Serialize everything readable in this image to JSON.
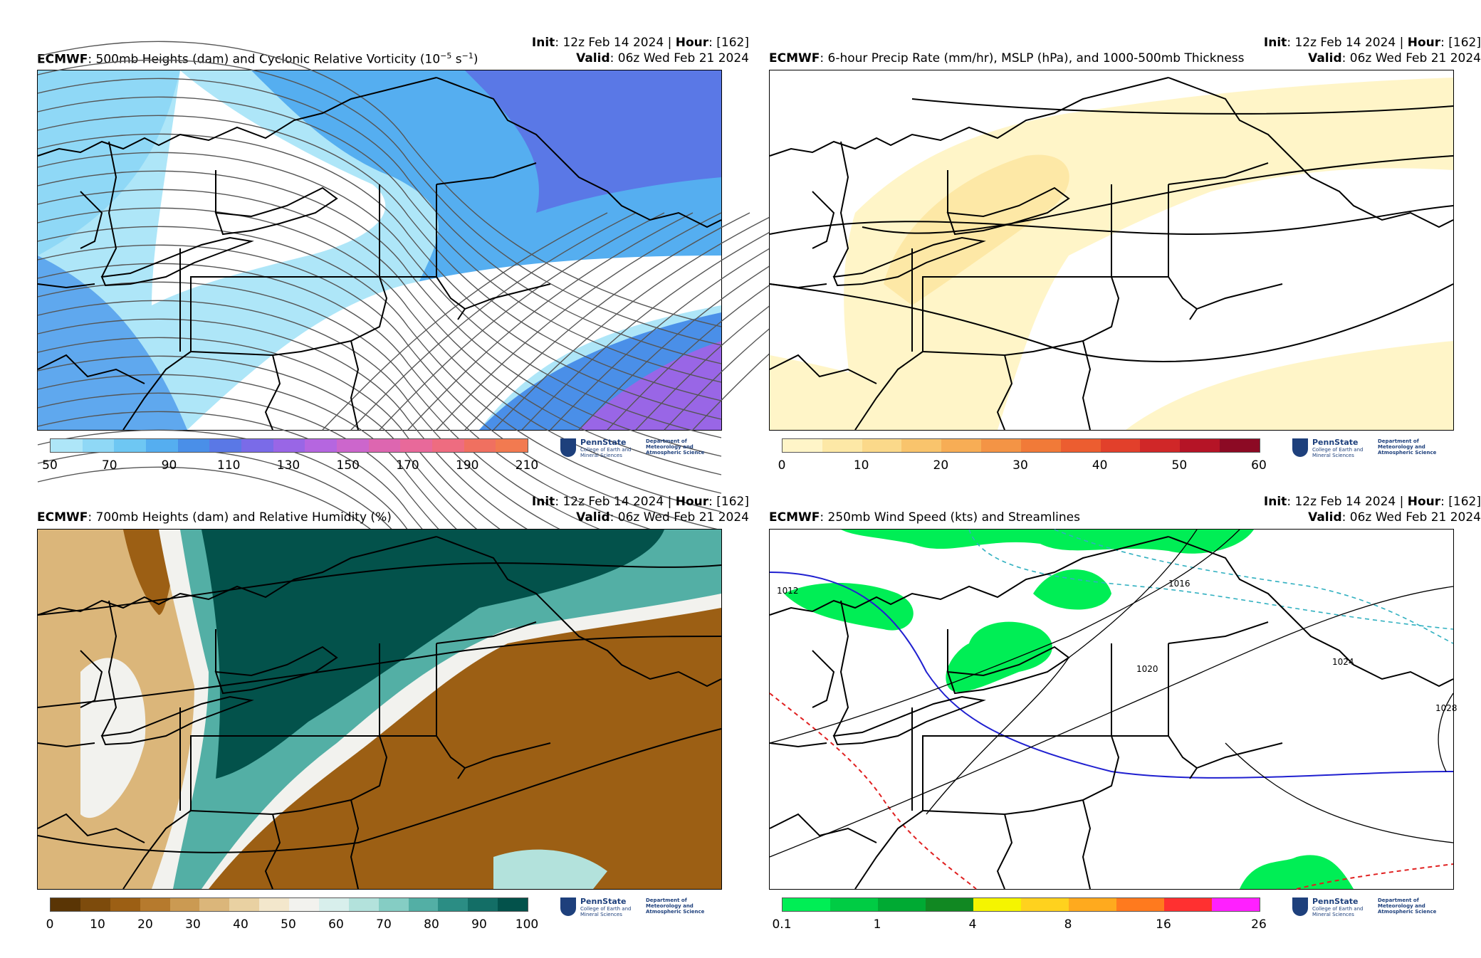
{
  "panels": [
    {
      "init_label": "Init",
      "init": ": 12z Feb 14 2024 | ",
      "hour_label": "Hour",
      "hour": ": [162]",
      "model": "ECMWF",
      "title": ": 500mb Heights (dam) and Cyclonic Relative Vorticity (10",
      "title_sup": "−5",
      "title_end": " s",
      "title_sup2": "−1",
      "title_close": ")",
      "valid_label": "Valid",
      "valid": ": 06z Wed Feb 21 2024",
      "colorbar": {
        "colors": [
          "#aee6f8",
          "#8fd8f6",
          "#6ec7f3",
          "#55aef0",
          "#4a8fe8",
          "#5a78e6",
          "#7a6be8",
          "#9966e6",
          "#b566e0",
          "#cc66cc",
          "#dd66b0",
          "#e8699a",
          "#ee6c80",
          "#f07060",
          "#f27a50"
        ],
        "ticks": [
          "50",
          "70",
          "90",
          "110",
          "130",
          "150",
          "170",
          "190",
          "210"
        ]
      }
    },
    {
      "init_label": "Init",
      "init": ": 12z Feb 14 2024 | ",
      "hour_label": "Hour",
      "hour": ": [162]",
      "model": "ECMWF",
      "title": ": 6-hour Precip Rate (mm/hr), MSLP (hPa), and 1000-500mb Thickness",
      "valid_label": "Valid",
      "valid": ": 06z Wed Feb 21 2024",
      "colorbar": {
        "colors": [
          "#fff5c8",
          "#fde8a6",
          "#fbd98a",
          "#f9c46c",
          "#f7ad55",
          "#f49445",
          "#f17a38",
          "#ec5d30",
          "#e2402b",
          "#d02728",
          "#b51426",
          "#8c0a24"
        ],
        "ticks": [
          "0",
          "10",
          "20",
          "30",
          "40",
          "50",
          "60"
        ]
      }
    },
    {
      "init_label": "Init",
      "init": ": 12z Feb 14 2024 | ",
      "hour_label": "Hour",
      "hour": ": [162]",
      "model": "ECMWF",
      "title": ": 700mb Heights (dam) and Relative Humidity (%)",
      "valid_label": "Valid",
      "valid": ": 06z Wed Feb 21 2024",
      "colorbar": {
        "colors": [
          "#5a3505",
          "#7d4b0c",
          "#9c5f14",
          "#b67a2d",
          "#cb9a52",
          "#dbb67a",
          "#e9d1a2",
          "#f3e7cc",
          "#f2f2ee",
          "#d8efec",
          "#b3e2dc",
          "#85cdc4",
          "#53afa5",
          "#2b8d84",
          "#136e66",
          "#03524b"
        ],
        "ticks": [
          "0",
          "10",
          "20",
          "30",
          "40",
          "50",
          "60",
          "70",
          "80",
          "90",
          "100"
        ]
      }
    },
    {
      "init_label": "Init",
      "init": ": 12z Feb 14 2024 | ",
      "hour_label": "Hour",
      "hour": ": [162]",
      "model": "ECMWF",
      "title": ": 250mb Wind Speed (kts) and Streamlines",
      "valid_label": "Valid",
      "valid": ": 06z Wed Feb 21 2024",
      "contour_labels": [
        "1016",
        "1020",
        "1024",
        "1028",
        "1012"
      ],
      "colorbar": {
        "colors": [
          "#00ee55",
          "#00cc44",
          "#00aa33",
          "#118822",
          "#f5f500",
          "#ffd21e",
          "#ffaa1e",
          "#ff7a1e",
          "#ff3030",
          "#ff20ff"
        ],
        "ticks": [
          "0.1",
          "1",
          "4",
          "8",
          "16",
          "26"
        ]
      }
    }
  ],
  "logo": {
    "name": "PennState",
    "college": "College of Earth and Mineral Sciences",
    "department": "Department of Meteorology and Atmospheric Science"
  }
}
